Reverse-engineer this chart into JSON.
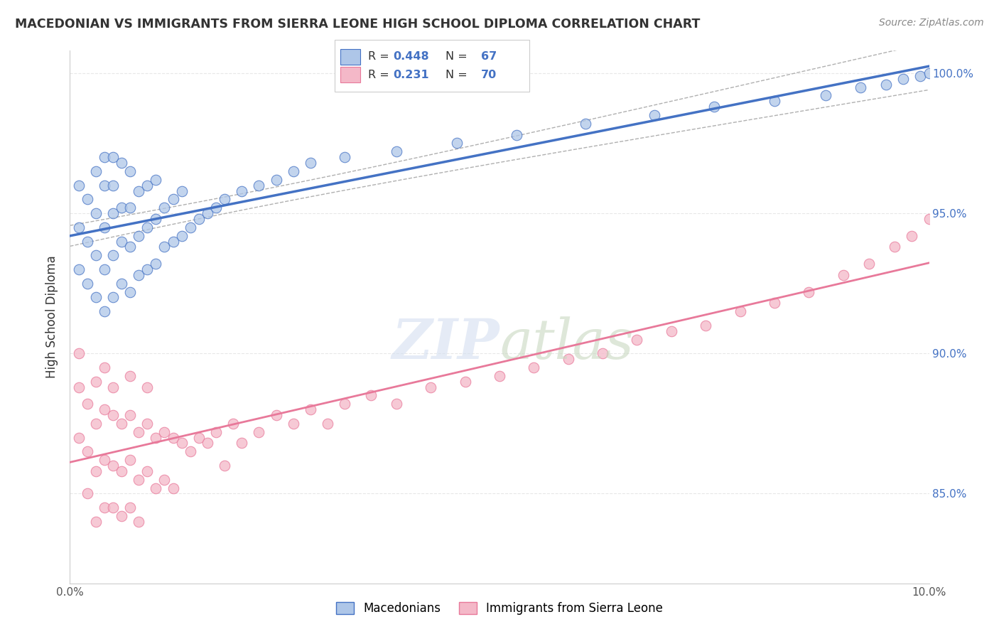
{
  "title": "MACEDONIAN VS IMMIGRANTS FROM SIERRA LEONE HIGH SCHOOL DIPLOMA CORRELATION CHART",
  "source": "Source: ZipAtlas.com",
  "ylabel": "High School Diploma",
  "blue_color": "#4472c4",
  "pink_color": "#e8799a",
  "scatter_blue": "#aec6e8",
  "scatter_pink": "#f4b8c8",
  "watermark_color": "#d4dff0",
  "grid_color": "#e8e8e8",
  "xlim": [
    0.0,
    0.1
  ],
  "ylim": [
    0.818,
    1.008
  ],
  "ytick_vals": [
    0.85,
    0.9,
    0.95,
    1.0
  ],
  "ytick_labels": [
    "85.0%",
    "90.0%",
    "95.0%",
    "100.0%"
  ],
  "R_mac": 0.448,
  "N_mac": 67,
  "R_sl": 0.231,
  "N_sl": 70,
  "macedonian_x": [
    0.001,
    0.001,
    0.001,
    0.002,
    0.002,
    0.002,
    0.003,
    0.003,
    0.003,
    0.003,
    0.004,
    0.004,
    0.004,
    0.004,
    0.004,
    0.005,
    0.005,
    0.005,
    0.005,
    0.005,
    0.006,
    0.006,
    0.006,
    0.006,
    0.007,
    0.007,
    0.007,
    0.007,
    0.008,
    0.008,
    0.008,
    0.009,
    0.009,
    0.009,
    0.01,
    0.01,
    0.01,
    0.011,
    0.011,
    0.012,
    0.012,
    0.013,
    0.013,
    0.014,
    0.015,
    0.016,
    0.017,
    0.018,
    0.02,
    0.022,
    0.024,
    0.026,
    0.028,
    0.032,
    0.038,
    0.045,
    0.052,
    0.06,
    0.068,
    0.075,
    0.082,
    0.088,
    0.092,
    0.095,
    0.097,
    0.099,
    0.1
  ],
  "macedonian_y": [
    0.93,
    0.945,
    0.96,
    0.925,
    0.94,
    0.955,
    0.92,
    0.935,
    0.95,
    0.965,
    0.915,
    0.93,
    0.945,
    0.96,
    0.97,
    0.92,
    0.935,
    0.95,
    0.96,
    0.97,
    0.925,
    0.94,
    0.952,
    0.968,
    0.922,
    0.938,
    0.952,
    0.965,
    0.928,
    0.942,
    0.958,
    0.93,
    0.945,
    0.96,
    0.932,
    0.948,
    0.962,
    0.938,
    0.952,
    0.94,
    0.955,
    0.942,
    0.958,
    0.945,
    0.948,
    0.95,
    0.952,
    0.955,
    0.958,
    0.96,
    0.962,
    0.965,
    0.968,
    0.97,
    0.972,
    0.975,
    0.978,
    0.982,
    0.985,
    0.988,
    0.99,
    0.992,
    0.995,
    0.996,
    0.998,
    0.999,
    1.0
  ],
  "sierraleone_x": [
    0.001,
    0.001,
    0.001,
    0.002,
    0.002,
    0.002,
    0.003,
    0.003,
    0.003,
    0.003,
    0.004,
    0.004,
    0.004,
    0.004,
    0.005,
    0.005,
    0.005,
    0.005,
    0.006,
    0.006,
    0.006,
    0.007,
    0.007,
    0.007,
    0.007,
    0.008,
    0.008,
    0.008,
    0.009,
    0.009,
    0.009,
    0.01,
    0.01,
    0.011,
    0.011,
    0.012,
    0.012,
    0.013,
    0.014,
    0.015,
    0.016,
    0.017,
    0.018,
    0.019,
    0.02,
    0.022,
    0.024,
    0.026,
    0.028,
    0.03,
    0.032,
    0.035,
    0.038,
    0.042,
    0.046,
    0.05,
    0.054,
    0.058,
    0.062,
    0.066,
    0.07,
    0.074,
    0.078,
    0.082,
    0.086,
    0.09,
    0.093,
    0.096,
    0.098,
    0.1
  ],
  "sierraleone_y": [
    0.888,
    0.9,
    0.87,
    0.882,
    0.865,
    0.85,
    0.875,
    0.858,
    0.84,
    0.89,
    0.88,
    0.862,
    0.845,
    0.895,
    0.878,
    0.86,
    0.845,
    0.888,
    0.875,
    0.858,
    0.842,
    0.878,
    0.862,
    0.845,
    0.892,
    0.872,
    0.855,
    0.84,
    0.875,
    0.858,
    0.888,
    0.87,
    0.852,
    0.872,
    0.855,
    0.87,
    0.852,
    0.868,
    0.865,
    0.87,
    0.868,
    0.872,
    0.86,
    0.875,
    0.868,
    0.872,
    0.878,
    0.875,
    0.88,
    0.875,
    0.882,
    0.885,
    0.882,
    0.888,
    0.89,
    0.892,
    0.895,
    0.898,
    0.9,
    0.905,
    0.908,
    0.91,
    0.915,
    0.918,
    0.922,
    0.928,
    0.932,
    0.938,
    0.942,
    0.948
  ]
}
